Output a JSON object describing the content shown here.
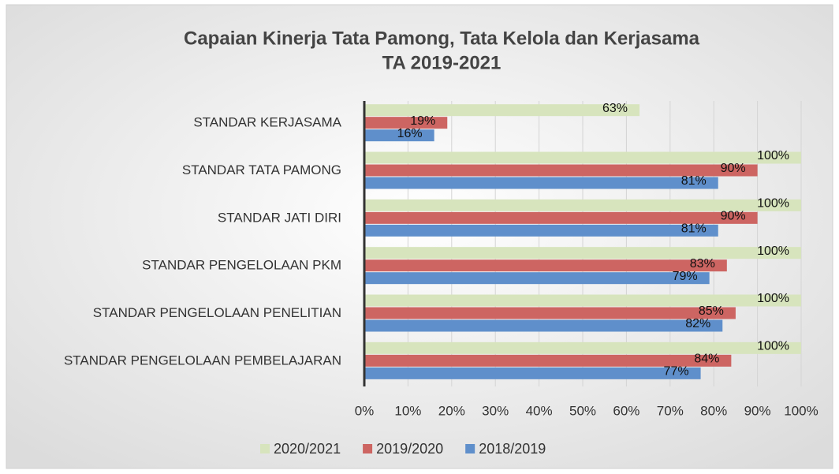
{
  "chart_data": {
    "type": "bar",
    "orientation": "horizontal",
    "title": [
      "Capaian Kinerja Tata Pamong, Tata Kelola dan Kerjasama",
      "TA 2019-2021"
    ],
    "categories": [
      "STANDAR KERJASAMA",
      "STANDAR TATA PAMONG",
      "STANDAR JATI DIRI",
      "STANDAR PENGELOLAAN PKM",
      "STANDAR PENGELOLAAN PENELITIAN",
      "STANDAR PENGELOLAAN PEMBELAJARAN"
    ],
    "series": [
      {
        "name": "2020/2021",
        "color": "#d7e4bd",
        "values": [
          63,
          100,
          100,
          100,
          100,
          100
        ],
        "value_labels": [
          "63%",
          "100%",
          "100%",
          "100%",
          "100%",
          "100%"
        ]
      },
      {
        "name": "2019/2020",
        "color": "#cd6562",
        "values": [
          19,
          90,
          90,
          83,
          85,
          84
        ],
        "value_labels": [
          "19%",
          "90%",
          "90%",
          "83%",
          "85%",
          "84%"
        ]
      },
      {
        "name": "2018/2019",
        "color": "#5f8fcb",
        "values": [
          16,
          81,
          81,
          79,
          82,
          77
        ],
        "value_labels": [
          "16%",
          "81%",
          "81%",
          "79%",
          "82%",
          "77%"
        ]
      }
    ],
    "xlim": [
      0,
      100
    ],
    "xticks": [
      {
        "value": 0,
        "label": "0%"
      },
      {
        "value": 10,
        "label": "10%"
      },
      {
        "value": 20,
        "label": "20%"
      },
      {
        "value": 30,
        "label": "30%"
      },
      {
        "value": 40,
        "label": "40%"
      },
      {
        "value": 50,
        "label": "50%"
      },
      {
        "value": 60,
        "label": "60%"
      },
      {
        "value": 70,
        "label": "70%"
      },
      {
        "value": 80,
        "label": "80%"
      },
      {
        "value": 90,
        "label": "90%"
      },
      {
        "value": 100,
        "label": "100%"
      }
    ],
    "grid": true,
    "legend": "bottom"
  }
}
